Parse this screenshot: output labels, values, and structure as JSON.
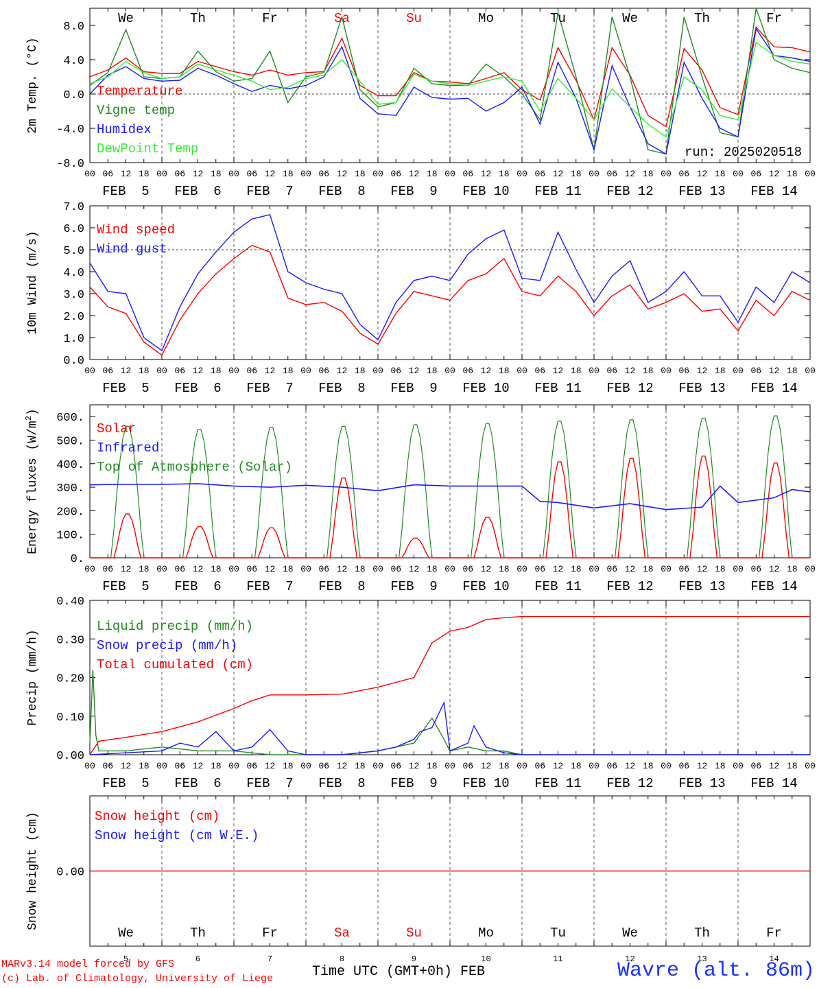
{
  "footer": {
    "model": "MARv3.14 model forced by GFS",
    "credit": "(c) Lab. of Climatology, University of Liege",
    "xtitle": "Time UTC (GMT+0h) FEB",
    "station": "Wavre (alt. 86m)"
  },
  "colors": {
    "red": "#ff0000",
    "green": "#228b22",
    "blue": "#1a1aff",
    "lightgreen": "#33ee33",
    "grid": "#555555"
  },
  "chart_data": [
    {
      "type": "line",
      "ylabel": "2m Temp. (°C)",
      "ylim": [
        -8,
        10
      ],
      "yticks": [
        "-8.0",
        "-4.0",
        "0.0",
        "4.0",
        "8.0"
      ],
      "hline": 0,
      "day_names": [
        "We",
        "Th",
        "Fr",
        "Sa",
        "Su",
        "Mo",
        "Tu",
        "We",
        "Th",
        "Fr"
      ],
      "weekend_days": [
        3,
        4
      ],
      "date_labels": [
        "FEB  5",
        "FEB  6",
        "FEB  7",
        "FEB  8",
        "FEB  9",
        "FEB 10",
        "FEB 11",
        "FEB 12",
        "FEB 13",
        "FEB 14"
      ],
      "hour_labels": [
        "00",
        "06",
        "12",
        "18"
      ],
      "annotation": "run: 2025020518",
      "legend": [
        "Temperature",
        "Vigne temp",
        "Humidex",
        "DewPoint Temp"
      ],
      "x_unit": "hours since FEB 5 00 UTC",
      "series": [
        {
          "name": "Temperature",
          "color": "red",
          "x": [
            0,
            6,
            12,
            18,
            24,
            30,
            36,
            42,
            48,
            54,
            60,
            66,
            72,
            78,
            84,
            90,
            96,
            102,
            108,
            114,
            120,
            126,
            132,
            138,
            144,
            150,
            156,
            162,
            168,
            174,
            180,
            186,
            192,
            198,
            204,
            210,
            216,
            222,
            228,
            234,
            240
          ],
          "values": [
            2.0,
            2.8,
            4.2,
            2.6,
            2.4,
            2.4,
            3.8,
            3.2,
            2.6,
            2.2,
            2.8,
            2.2,
            2.5,
            2.6,
            6.5,
            1.0,
            -0.2,
            -0.2,
            2.5,
            1.5,
            1.4,
            1.2,
            1.8,
            2.5,
            0.5,
            -0.7,
            5.4,
            1.6,
            -3.0,
            5.4,
            2.2,
            -2.5,
            -3.8,
            5.3,
            2.8,
            -1.6,
            -2.4,
            7.8,
            5.5,
            5.4,
            4.9
          ]
        },
        {
          "name": "Vigne temp",
          "color": "green",
          "x": [
            0,
            6,
            12,
            18,
            24,
            30,
            36,
            42,
            48,
            54,
            60,
            66,
            72,
            78,
            84,
            90,
            96,
            102,
            108,
            114,
            120,
            126,
            132,
            138,
            144,
            150,
            156,
            162,
            168,
            174,
            180,
            186,
            192,
            198,
            204,
            210,
            216,
            222,
            228,
            234,
            240
          ],
          "values": [
            1.0,
            2.5,
            7.5,
            2.0,
            1.8,
            2.0,
            5.0,
            2.6,
            1.5,
            1.8,
            5.0,
            -1.0,
            2.0,
            2.5,
            9.0,
            0.5,
            -1.5,
            -1.0,
            3.0,
            1.2,
            1.0,
            1.0,
            3.5,
            2.0,
            0.0,
            -3.0,
            9.5,
            2.0,
            -6.5,
            9.0,
            2.0,
            -6.5,
            -7.0,
            9.0,
            2.0,
            -4.5,
            -5.0,
            10.0,
            4.0,
            3.0,
            2.5
          ]
        },
        {
          "name": "Humidex",
          "color": "blue",
          "x": [
            0,
            6,
            12,
            18,
            24,
            30,
            36,
            42,
            48,
            54,
            60,
            66,
            72,
            78,
            84,
            90,
            96,
            102,
            108,
            114,
            120,
            126,
            132,
            138,
            144,
            150,
            156,
            162,
            168,
            174,
            180,
            186,
            192,
            198,
            204,
            210,
            216,
            222,
            228,
            234,
            240
          ],
          "values": [
            0.0,
            2.2,
            3.2,
            1.8,
            1.5,
            1.6,
            3.0,
            2.2,
            1.2,
            0.3,
            1.0,
            0.6,
            1.0,
            2.0,
            5.5,
            -0.5,
            -2.3,
            -2.5,
            0.8,
            -0.4,
            -0.6,
            -0.5,
            -2.0,
            -1.0,
            0.8,
            -3.5,
            3.7,
            -0.5,
            -6.5,
            3.3,
            -1.5,
            -5.8,
            -7.0,
            3.7,
            -0.5,
            -4.0,
            -5.0,
            7.6,
            4.5,
            4.2,
            3.8
          ]
        },
        {
          "name": "DewPoint Temp",
          "color": "lightgreen",
          "x": [
            0,
            6,
            12,
            18,
            24,
            30,
            36,
            42,
            48,
            54,
            60,
            66,
            72,
            78,
            84,
            90,
            96,
            102,
            108,
            114,
            120,
            126,
            132,
            138,
            144,
            150,
            156,
            162,
            168,
            174,
            180,
            186,
            192,
            198,
            204,
            210,
            216,
            222,
            228,
            234,
            240
          ],
          "values": [
            1.2,
            2.0,
            3.8,
            2.5,
            1.8,
            2.0,
            3.5,
            2.8,
            2.2,
            1.5,
            0.5,
            0.8,
            1.8,
            2.2,
            4.0,
            1.5,
            -1.2,
            -1.0,
            2.3,
            1.5,
            1.2,
            1.0,
            1.5,
            2.0,
            1.5,
            -2.0,
            1.8,
            -0.5,
            -3.0,
            0.6,
            -1.5,
            -3.5,
            -5.0,
            2.0,
            0.5,
            -2.5,
            -3.0,
            6.0,
            4.5,
            3.8,
            3.5
          ]
        }
      ]
    },
    {
      "type": "line",
      "ylabel": "10m Wind (m/s)",
      "ylim": [
        0,
        7
      ],
      "yticks": [
        "0.0",
        "1.0",
        "2.0",
        "3.0",
        "4.0",
        "5.0",
        "6.0",
        "7.0"
      ],
      "hline": 5,
      "date_labels": [
        "FEB  5",
        "FEB  6",
        "FEB  7",
        "FEB  8",
        "FEB  9",
        "FEB 10",
        "FEB 11",
        "FEB 12",
        "FEB 13",
        "FEB 14"
      ],
      "hour_labels": [
        "00",
        "06",
        "12",
        "18"
      ],
      "legend": [
        "Wind speed",
        "Wind gust"
      ],
      "series": [
        {
          "name": "Wind speed",
          "color": "red",
          "x": [
            0,
            6,
            12,
            18,
            24,
            30,
            36,
            42,
            48,
            54,
            60,
            66,
            72,
            78,
            84,
            90,
            96,
            102,
            108,
            114,
            120,
            126,
            132,
            138,
            144,
            150,
            156,
            162,
            168,
            174,
            180,
            186,
            192,
            198,
            204,
            210,
            216,
            222,
            228,
            234,
            240
          ],
          "values": [
            3.3,
            2.4,
            2.1,
            0.8,
            0.2,
            1.8,
            3.0,
            3.9,
            4.6,
            5.2,
            4.9,
            2.8,
            2.5,
            2.6,
            2.2,
            1.2,
            0.7,
            2.1,
            3.1,
            2.9,
            2.7,
            3.6,
            3.9,
            4.6,
            3.1,
            2.9,
            3.8,
            3.1,
            2.0,
            2.9,
            3.4,
            2.3,
            2.6,
            3.0,
            2.2,
            2.3,
            1.3,
            2.7,
            2.0,
            3.1,
            2.7
          ]
        },
        {
          "name": "Wind gust",
          "color": "blue",
          "x": [
            0,
            6,
            12,
            18,
            24,
            30,
            36,
            42,
            48,
            54,
            60,
            66,
            72,
            78,
            84,
            90,
            96,
            102,
            108,
            114,
            120,
            126,
            132,
            138,
            144,
            150,
            156,
            162,
            168,
            174,
            180,
            186,
            192,
            198,
            204,
            210,
            216,
            222,
            228,
            234,
            240
          ],
          "values": [
            4.4,
            3.1,
            3.0,
            1.0,
            0.4,
            2.4,
            3.9,
            4.9,
            5.8,
            6.4,
            6.6,
            4.0,
            3.5,
            3.2,
            3.0,
            1.6,
            0.9,
            2.6,
            3.6,
            3.8,
            3.6,
            4.8,
            5.5,
            5.9,
            3.7,
            3.6,
            5.8,
            4.1,
            2.6,
            3.8,
            4.5,
            2.6,
            3.1,
            4.0,
            2.9,
            2.9,
            1.7,
            3.3,
            2.6,
            4.0,
            3.5
          ]
        }
      ]
    },
    {
      "type": "line",
      "ylabel": "Energy fluxes (W/m2)",
      "ylim": [
        0,
        650
      ],
      "yticks": [
        "0.",
        "100.",
        "200.",
        "300.",
        "400.",
        "500.",
        "600."
      ],
      "date_labels": [
        "FEB  5",
        "FEB  6",
        "FEB  7",
        "FEB  8",
        "FEB  9",
        "FEB 10",
        "FEB 11",
        "FEB 12",
        "FEB 13",
        "FEB 14"
      ],
      "hour_labels": [
        "00",
        "06",
        "12",
        "18"
      ],
      "legend": [
        "Solar",
        "Infrared",
        "Top of Atmosphere (Solar)"
      ],
      "day_peaks": {
        "toa": [
          565,
          552,
          560,
          565,
          572,
          577,
          587,
          593,
          600,
          610
        ],
        "solar": [
          190,
          135,
          130,
          345,
          85,
          175,
          415,
          430,
          440,
          410
        ]
      },
      "infrared": {
        "x": [
          0,
          12,
          24,
          36,
          48,
          60,
          72,
          84,
          96,
          108,
          120,
          132,
          144,
          150,
          156,
          168,
          180,
          192,
          204,
          210,
          216,
          228,
          234,
          240
        ],
        "values": [
          310,
          312,
          312,
          315,
          305,
          300,
          308,
          300,
          285,
          310,
          305,
          305,
          305,
          240,
          235,
          212,
          230,
          205,
          215,
          305,
          235,
          255,
          290,
          280
        ]
      }
    },
    {
      "type": "line",
      "ylabel": "Precip (mm/h)",
      "ylim": [
        0,
        0.4
      ],
      "yticks": [
        "0.00",
        "0.10",
        "0.20",
        "0.30",
        "0.40"
      ],
      "date_labels": [
        "FEB  5",
        "FEB  6",
        "FEB  7",
        "FEB  8",
        "FEB  9",
        "FEB 10",
        "FEB 11",
        "FEB 12",
        "FEB 13",
        "FEB 14"
      ],
      "hour_labels": [
        "00",
        "06",
        "12",
        "18"
      ],
      "legend": [
        "Liquid precip (mm/h)",
        "Snow precip (mm/h)",
        "Total cumulated (cm)"
      ],
      "series": [
        {
          "name": "Total cumulated (cm)",
          "color": "red",
          "x": [
            0,
            3,
            12,
            24,
            36,
            48,
            54,
            60,
            72,
            84,
            96,
            108,
            114,
            120,
            126,
            132,
            138,
            144,
            240
          ],
          "values": [
            0.0,
            0.035,
            0.045,
            0.06,
            0.085,
            0.12,
            0.14,
            0.155,
            0.155,
            0.157,
            0.175,
            0.2,
            0.29,
            0.32,
            0.33,
            0.35,
            0.355,
            0.358,
            0.358
          ]
        },
        {
          "name": "Liquid precip (mm/h)",
          "color": "green",
          "x": [
            0,
            1,
            2,
            3,
            5,
            12,
            24,
            36,
            48,
            60,
            84,
            96,
            108,
            114,
            118,
            120,
            126,
            132,
            138,
            144,
            240
          ],
          "values": [
            0.03,
            0.22,
            0.05,
            0.01,
            0.01,
            0.01,
            0.02,
            0.01,
            0.01,
            0.0,
            0.0,
            0.01,
            0.03,
            0.095,
            0.04,
            0.01,
            0.02,
            0.01,
            0.01,
            0.0,
            0.0
          ]
        },
        {
          "name": "Snow precip (mm/h)",
          "color": "blue",
          "x": [
            0,
            12,
            24,
            30,
            36,
            42,
            48,
            54,
            60,
            66,
            72,
            84,
            96,
            102,
            108,
            110,
            114,
            118,
            120,
            126,
            128,
            132,
            138,
            144,
            150,
            240
          ],
          "values": [
            0.0,
            0.005,
            0.01,
            0.03,
            0.02,
            0.06,
            0.01,
            0.02,
            0.065,
            0.01,
            0.0,
            0.0,
            0.01,
            0.02,
            0.04,
            0.06,
            0.07,
            0.135,
            0.01,
            0.03,
            0.075,
            0.02,
            0.005,
            0.0,
            0.0,
            0.0
          ]
        }
      ]
    },
    {
      "type": "line",
      "ylabel": "Snow height (cm)",
      "ylim": [
        -1,
        1
      ],
      "yticks": [
        "0.00"
      ],
      "day_names": [
        "We",
        "Th",
        "Fr",
        "Sa",
        "Su",
        "Mo",
        "Tu",
        "We",
        "Th",
        "Fr"
      ],
      "weekend_days": [
        3,
        4
      ],
      "date_numbers": [
        "5",
        "6",
        "7",
        "8",
        "9",
        "10",
        "11",
        "12",
        "13",
        "14"
      ],
      "legend": [
        "Snow height (cm)",
        "Snow height (cm W.E.)"
      ],
      "series": [
        {
          "name": "Snow height (cm)",
          "color": "red",
          "x": [
            0,
            240
          ],
          "values": [
            0,
            0
          ]
        }
      ]
    }
  ]
}
